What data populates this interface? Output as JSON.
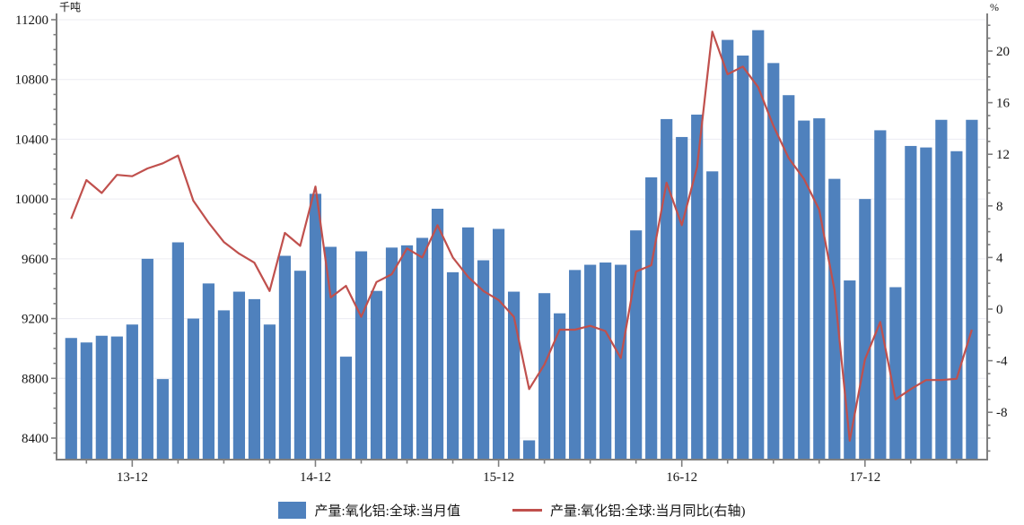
{
  "chart_data": {
    "type": "bar+line",
    "title": "",
    "categories": [
      "13-08",
      "13-09",
      "13-10",
      "13-11",
      "13-12",
      "14-01",
      "14-02",
      "14-03",
      "14-04",
      "14-05",
      "14-06",
      "14-07",
      "14-08",
      "14-09",
      "14-10",
      "14-11",
      "14-12",
      "15-01",
      "15-02",
      "15-03",
      "15-04",
      "15-05",
      "15-06",
      "15-07",
      "15-08",
      "15-09",
      "15-10",
      "15-11",
      "15-12",
      "16-01",
      "16-02",
      "16-03",
      "16-04",
      "16-05",
      "16-06",
      "16-07",
      "16-08",
      "16-09",
      "16-10",
      "16-11",
      "16-12",
      "17-01",
      "17-02",
      "17-03",
      "17-04",
      "17-05",
      "17-06",
      "17-07",
      "17-08",
      "17-09",
      "17-10",
      "17-11",
      "17-12",
      "18-01",
      "18-02",
      "18-03",
      "18-04",
      "18-05",
      "18-06",
      "18-07"
    ],
    "series": [
      {
        "name": "产量:氧化铝:全球:当月值",
        "type": "bar",
        "axis": "left",
        "color": "#4F81BD",
        "values": [
          9070,
          9040,
          9085,
          9080,
          9160,
          9600,
          8795,
          9710,
          9200,
          9435,
          9255,
          9380,
          9330,
          9160,
          9620,
          9520,
          10035,
          9680,
          8945,
          9650,
          9385,
          9675,
          9690,
          9740,
          9935,
          9510,
          9810,
          9590,
          9800,
          9380,
          8385,
          9370,
          9235,
          9525,
          9560,
          9575,
          9560,
          9790,
          10145,
          10535,
          10415,
          10565,
          10185,
          11065,
          10960,
          11130,
          10910,
          10695,
          10525,
          10540,
          10135,
          9455,
          10000,
          10460,
          9410,
          10355,
          10345,
          10530,
          10320,
          10530
        ]
      },
      {
        "name": "产量:氧化铝:全球:当月同比(右轴)",
        "type": "line",
        "axis": "right",
        "color": "#C0504D",
        "values": [
          7.0,
          10.0,
          9.0,
          10.4,
          10.3,
          10.9,
          11.3,
          11.9,
          8.4,
          6.7,
          5.2,
          4.3,
          3.6,
          1.4,
          5.9,
          4.9,
          9.5,
          0.9,
          1.8,
          -0.6,
          2.1,
          2.7,
          4.7,
          4.0,
          6.5,
          4.0,
          2.5,
          1.4,
          0.7,
          -0.6,
          -6.2,
          -4.3,
          -1.6,
          -1.6,
          -1.3,
          -1.7,
          -3.8,
          2.9,
          3.4,
          9.8,
          6.5,
          11.0,
          21.5,
          18.2,
          18.8,
          17.2,
          14.2,
          11.7,
          10.1,
          7.7,
          1.5,
          -10.2,
          -3.9,
          -1.0,
          -7.0,
          -6.2,
          -5.5,
          -5.5,
          -5.4,
          -1.6
        ]
      }
    ],
    "left_axis": {
      "unit": "千吨",
      "tick_labels": [
        "8400",
        "8800",
        "9200",
        "9600",
        "10000",
        "10400",
        "10800",
        "11200"
      ],
      "tick_values": [
        8400,
        8800,
        9200,
        9600,
        10000,
        10400,
        10800,
        11200
      ],
      "minor_step": 100,
      "min": 8256,
      "max": 11242
    },
    "right_axis": {
      "unit": "%",
      "tick_labels": [
        "-8",
        "-4",
        "0",
        "4",
        "8",
        "12",
        "16",
        "20"
      ],
      "tick_values": [
        -8,
        -4,
        0,
        4,
        8,
        12,
        16,
        20
      ],
      "minor_step": 1,
      "min": -11.7,
      "max": 22.9
    },
    "x_axis": {
      "labels": [
        {
          "index": 4,
          "label": "13-12"
        },
        {
          "index": 16,
          "label": "14-12"
        },
        {
          "index": 28,
          "label": "15-12"
        },
        {
          "index": 40,
          "label": "16-12"
        },
        {
          "index": 52,
          "label": "17-12"
        }
      ],
      "minor_tick_every_months": 3
    },
    "grid": "horizontal-major-only",
    "legend_position": "bottom-center",
    "colors": {
      "bar": "#4F81BD",
      "line": "#C0504D",
      "axis": "#7F7F7F",
      "gridline": "#ECECF2",
      "background": "#FFFFFF"
    }
  }
}
